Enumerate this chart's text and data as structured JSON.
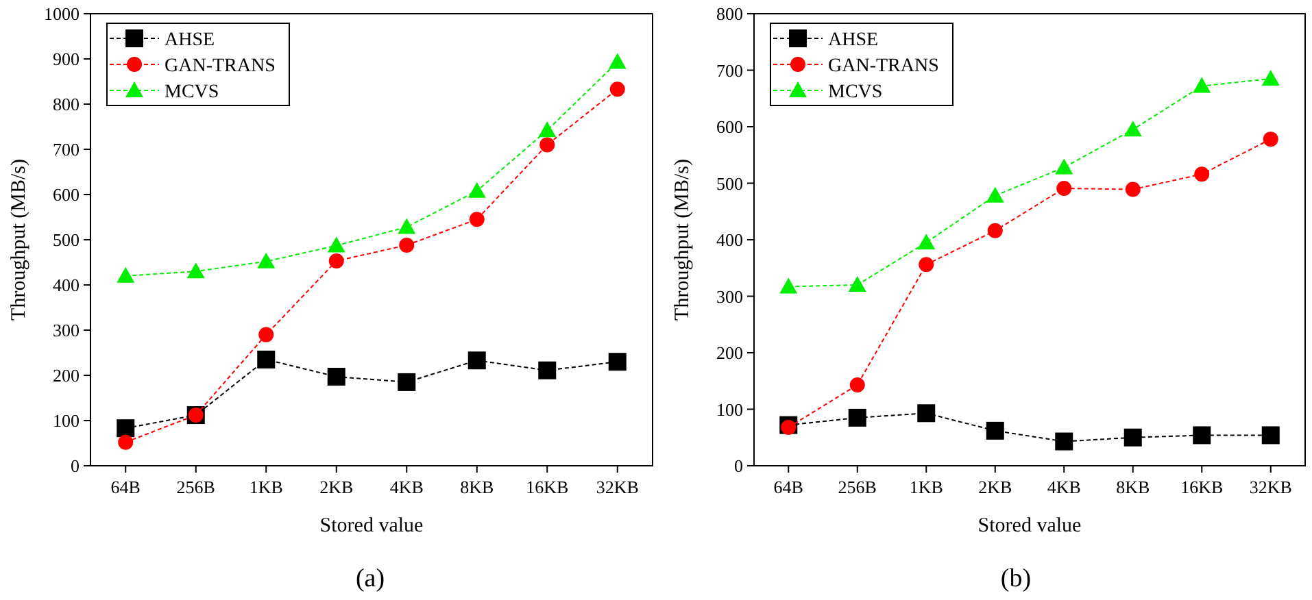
{
  "chart_data": [
    {
      "type": "line",
      "title": "(a)",
      "xlabel": "Stored value",
      "ylabel": "Throughput (MB/s)",
      "categories": [
        "64B",
        "256B",
        "1KB",
        "2KB",
        "4KB",
        "8KB",
        "16KB",
        "32KB"
      ],
      "ylim": [
        0,
        1000
      ],
      "yticks": [
        0,
        100,
        200,
        300,
        400,
        500,
        600,
        700,
        800,
        900,
        1000
      ],
      "legend": "top left",
      "grid": false,
      "line_style": "dashed",
      "series": [
        {
          "name": "AHSE",
          "color": "#000000",
          "marker": "square",
          "values": [
            83,
            112,
            235,
            197,
            185,
            233,
            211,
            230
          ]
        },
        {
          "name": "GAN-TRANS",
          "color": "#ff0000",
          "marker": "circle",
          "values": [
            52,
            112,
            290,
            453,
            488,
            545,
            710,
            833
          ]
        },
        {
          "name": "MCVS",
          "color": "#00ee00",
          "marker": "triangle",
          "values": [
            420,
            430,
            452,
            487,
            528,
            608,
            742,
            893
          ]
        }
      ]
    },
    {
      "type": "line",
      "title": "(b)",
      "xlabel": "Stored value",
      "ylabel": "Throughput (MB/s)",
      "categories": [
        "64B",
        "256B",
        "1KB",
        "2KB",
        "4KB",
        "8KB",
        "16KB",
        "32KB"
      ],
      "ylim": [
        0,
        800
      ],
      "yticks": [
        0,
        100,
        200,
        300,
        400,
        500,
        600,
        700,
        800
      ],
      "legend": "top left",
      "grid": false,
      "line_style": "dashed",
      "series": [
        {
          "name": "AHSE",
          "color": "#000000",
          "marker": "square",
          "values": [
            72,
            85,
            93,
            62,
            43,
            50,
            54,
            54
          ]
        },
        {
          "name": "GAN-TRANS",
          "color": "#ff0000",
          "marker": "circle",
          "values": [
            68,
            143,
            356,
            416,
            491,
            489,
            516,
            578
          ]
        },
        {
          "name": "MCVS",
          "color": "#00ee00",
          "marker": "triangle",
          "values": [
            317,
            320,
            395,
            478,
            528,
            595,
            672,
            685
          ]
        }
      ]
    }
  ]
}
